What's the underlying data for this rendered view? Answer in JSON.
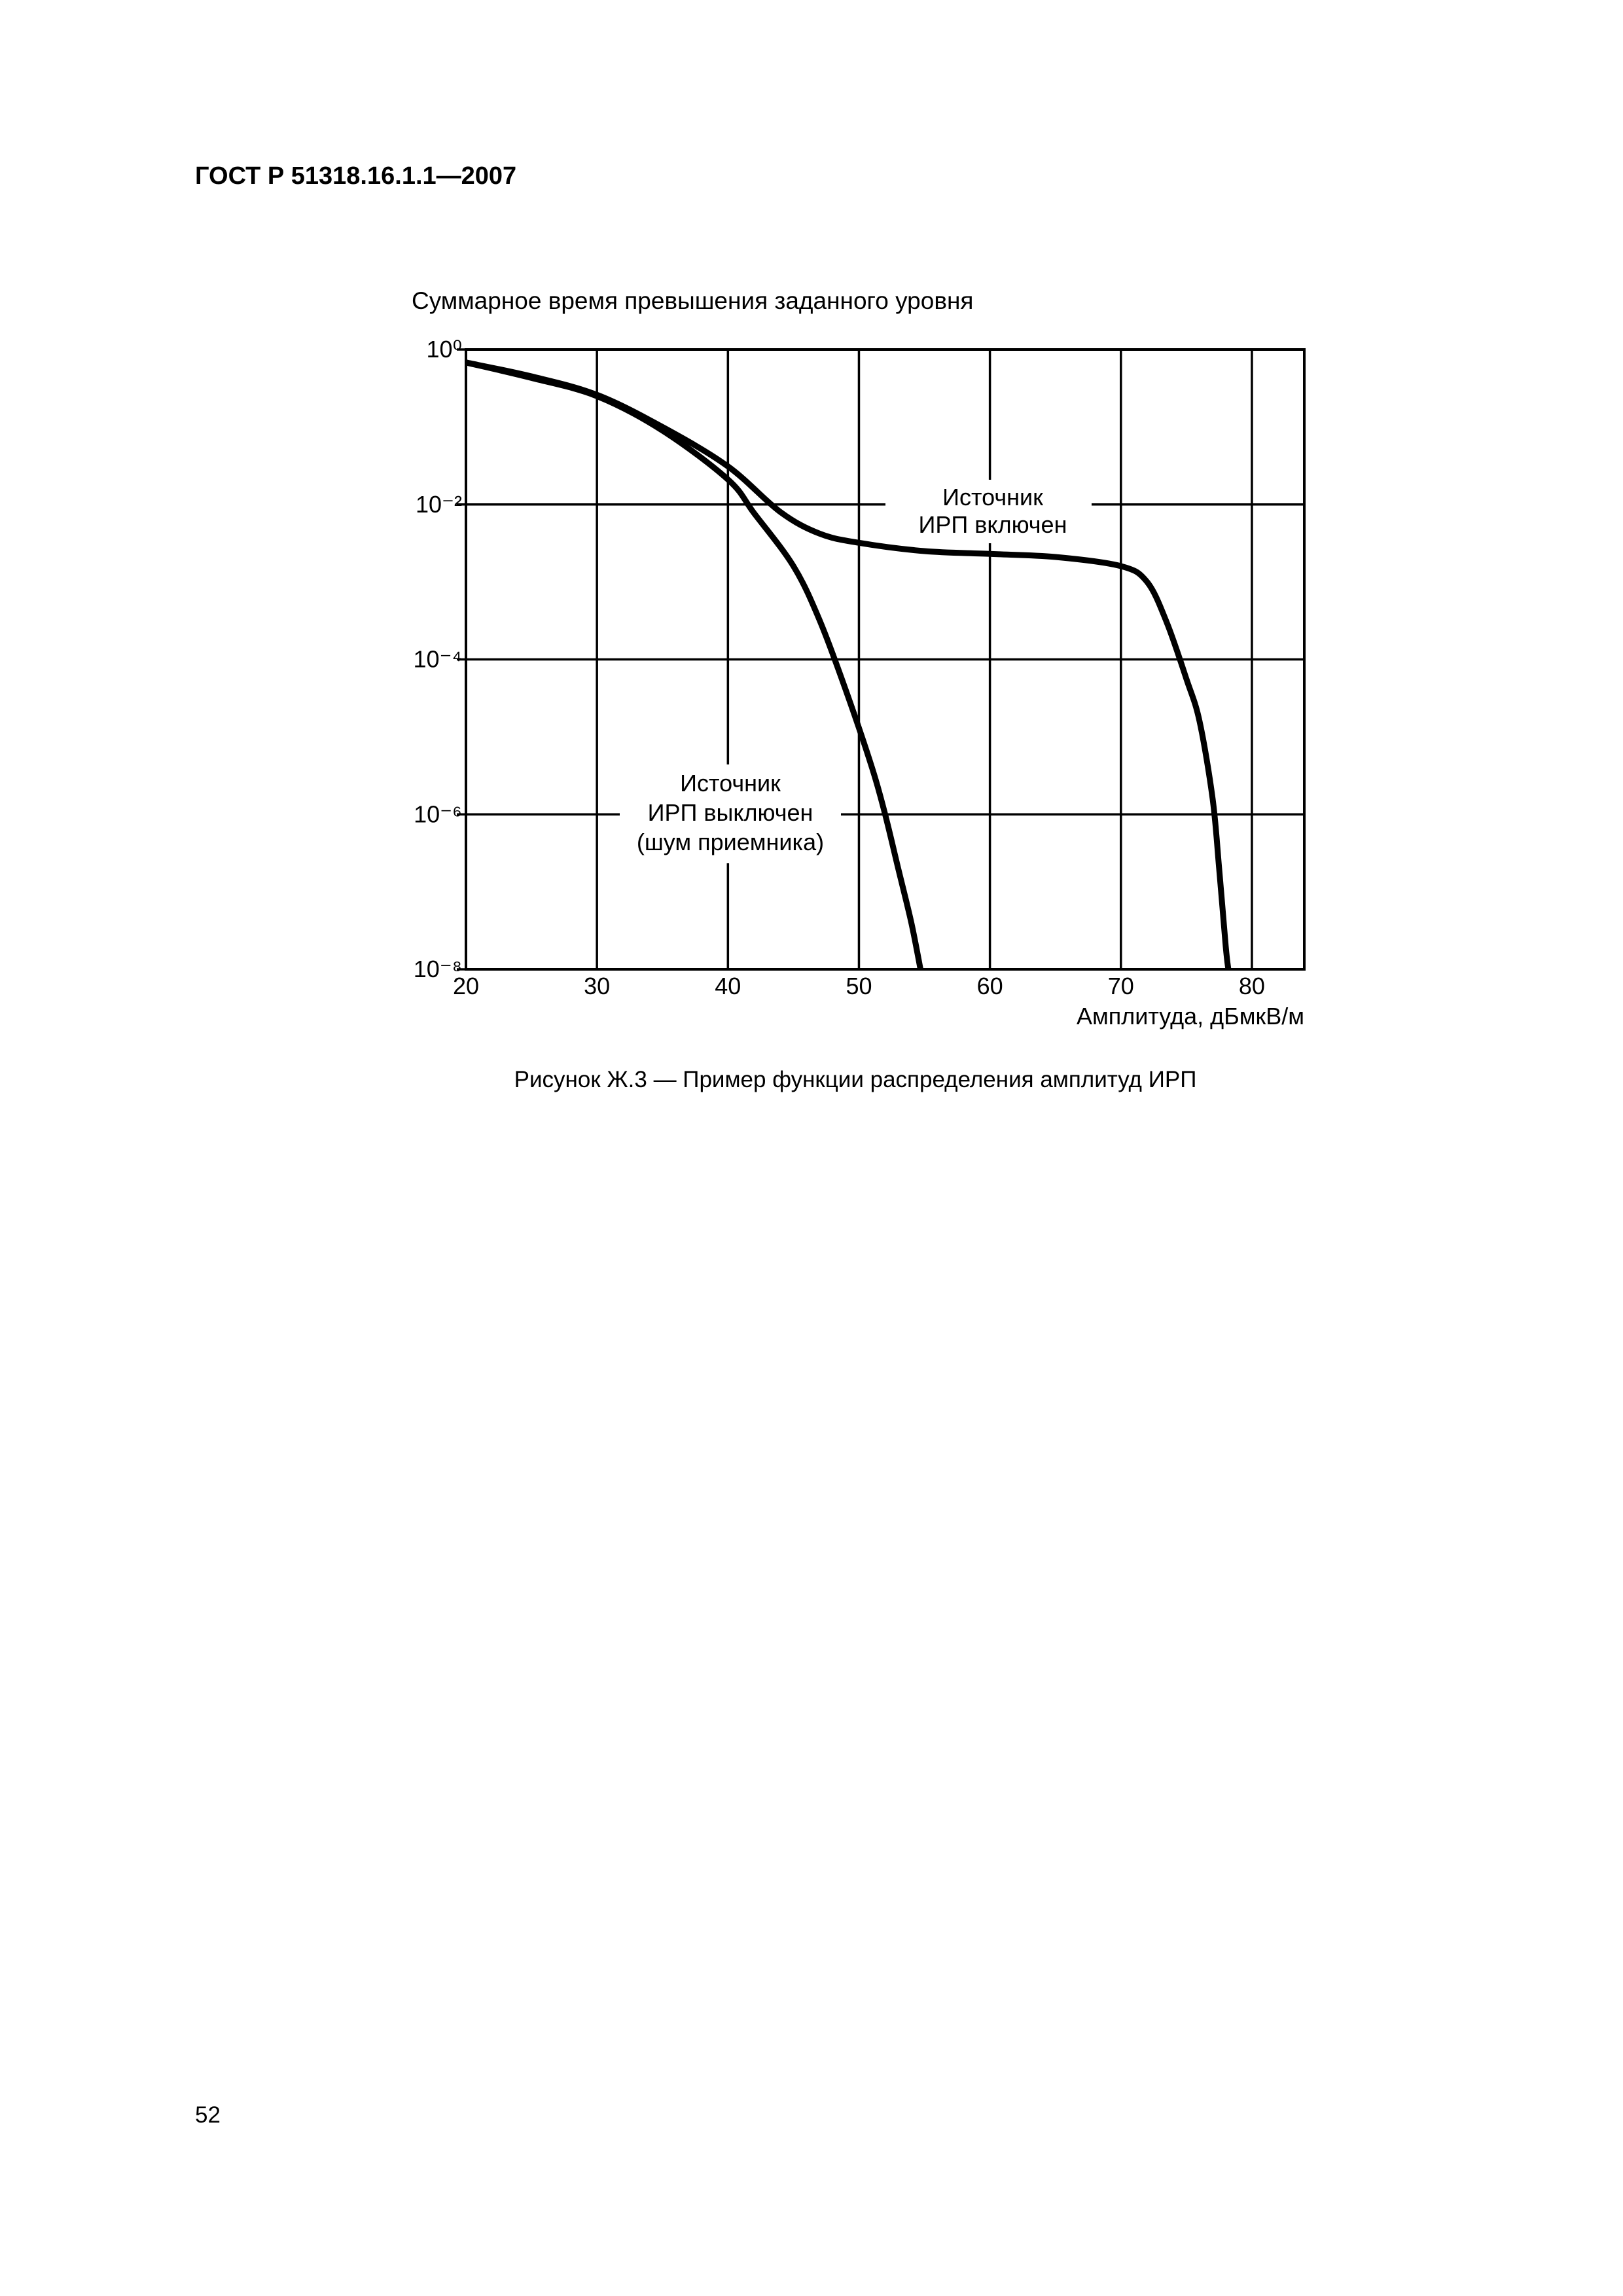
{
  "header": "ГОСТ Р 51318.16.1.1—2007",
  "chart_data": {
    "type": "line",
    "title": "Суммарное время превышения заданного уровня",
    "x_label": "Амплитуда, дБмкВ/м",
    "log_y": true,
    "grid": true,
    "xlim": [
      20,
      84
    ],
    "ylim": [
      1e-08,
      1
    ],
    "xticks": [
      20,
      30,
      40,
      50,
      60,
      70,
      80
    ],
    "yticks": [
      {
        "value": 1,
        "label": "10⁰"
      },
      {
        "value": 0.01,
        "label": "10⁻²"
      },
      {
        "value": 0.0001,
        "label": "10⁻⁴"
      },
      {
        "value": 1e-06,
        "label": "10⁻⁶"
      },
      {
        "value": 1e-08,
        "label": "10⁻⁸"
      }
    ],
    "series": [
      {
        "color": "#000000",
        "x": [
          20,
          25,
          30,
          35,
          40,
          44,
          47,
          50,
          55,
          60,
          65,
          70,
          72,
          73.5,
          75,
          76,
          77,
          77.5,
          78,
          78.2
        ],
        "values": [
          0.68,
          0.45,
          0.26,
          0.1,
          0.031,
          0.008,
          0.0042,
          0.0032,
          0.0025,
          0.0023,
          0.0021,
          0.0016,
          0.001,
          0.0003,
          5.6e-05,
          1.6e-05,
          1.6e-06,
          2e-07,
          2e-08,
          1e-08
        ]
      },
      {
        "color": "#000000",
        "x": [
          20,
          25,
          30,
          35,
          40,
          42,
          45,
          47,
          49,
          51,
          52,
          53,
          54,
          54.7
        ],
        "values": [
          0.68,
          0.43,
          0.25,
          0.09,
          0.021,
          0.0077,
          0.0016,
          0.00032,
          4e-05,
          4e-06,
          1e-06,
          2e-07,
          4e-08,
          1e-08
        ]
      }
    ],
    "annotations": [
      {
        "lines": [
          "Источник",
          "ИРП включен"
        ]
      },
      {
        "lines": [
          "Источник",
          "ИРП выключен",
          "(шум приемника)"
        ]
      }
    ]
  },
  "caption": "Рисунок Ж.3 — Пример функции распределения амплитуд ИРП",
  "page_number": "52"
}
